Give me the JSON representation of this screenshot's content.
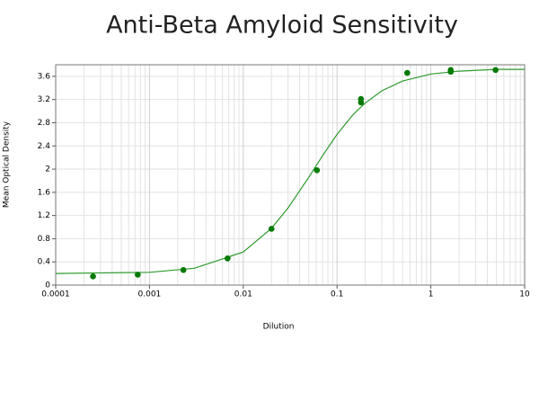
{
  "chart_data": {
    "type": "scatter",
    "title": "Anti-Beta Amyloid Sensitivity",
    "x_label": "Dilution",
    "y_label": "Mean Optical Density",
    "xscale": "log",
    "xlim": [
      0.0001,
      10
    ],
    "xticks": [
      0.0001,
      0.001,
      0.01,
      0.1,
      1,
      10
    ],
    "ylim": [
      0,
      3.8
    ],
    "yticks": [
      0,
      0.4,
      0.8,
      1.2,
      1.6,
      2,
      2.4,
      2.8,
      3.2,
      3.6
    ],
    "grid": true,
    "minor_grid": true,
    "series": [
      {
        "type": "line",
        "color": "#2e9a2e",
        "x": [
          0.0001,
          0.0003,
          0.001,
          0.003,
          0.01,
          0.02,
          0.03,
          0.05,
          0.07,
          0.1,
          0.15,
          0.2,
          0.3,
          0.5,
          1,
          2,
          5,
          10
        ],
        "values": [
          0.2,
          0.21,
          0.22,
          0.29,
          0.57,
          0.98,
          1.33,
          1.86,
          2.23,
          2.6,
          2.95,
          3.14,
          3.35,
          3.52,
          3.64,
          3.69,
          3.72,
          3.72
        ]
      },
      {
        "type": "scatter",
        "color": "#007a00",
        "x": [
          0.00025,
          0.00075,
          0.0023,
          0.0068,
          0.02,
          0.061,
          0.18,
          0.18,
          0.56,
          1.63,
          1.63,
          4.9
        ],
        "values": [
          0.15,
          0.18,
          0.26,
          0.46,
          0.97,
          1.98,
          3.21,
          3.15,
          3.66,
          3.71,
          3.68,
          3.71
        ]
      }
    ]
  }
}
